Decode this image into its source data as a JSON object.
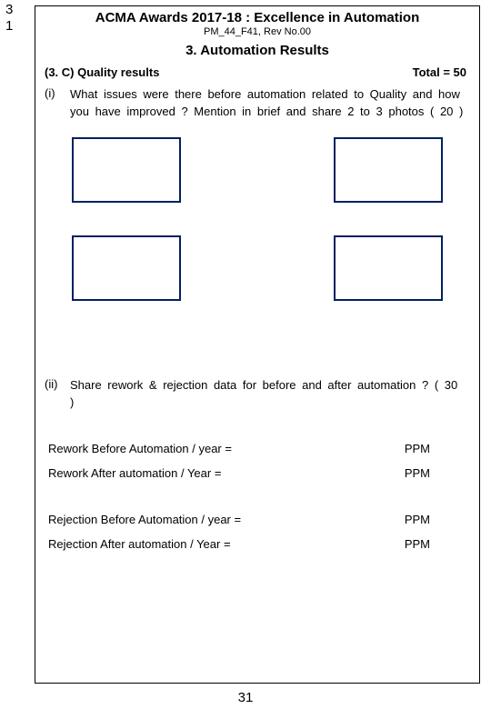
{
  "outer_number_top": "3",
  "outer_number_bottom": "1",
  "header": {
    "title": "ACMA Awards 2017-18 : Excellence in Automation",
    "subtitle": "PM_44_F41, Rev No.00"
  },
  "section_title": "3. Automation Results",
  "quality": {
    "left": "(3. C)   Quality   results",
    "right": "Total  = 50"
  },
  "q1": {
    "num": "(i)",
    "text": "What issues were there before automation related to Quality and how you have improved ? Mention in brief and share  2 to 3  photos   ( 20 )"
  },
  "q2": {
    "num": "(ii)",
    "text": "Share rework & rejection data for before and after automation  ? ( 30 )"
  },
  "rows": {
    "rework_before": {
      "label": "Rework Before  Automation / year  =",
      "unit": "PPM"
    },
    "rework_after": {
      "label": "Rework   After  automation / Year     =",
      "unit": "PPM"
    },
    "reject_before": {
      "label": "Rejection Before  Automation / year  =",
      "unit": "PPM"
    },
    "reject_after": {
      "label": "Rejection     After  automation / Year   =",
      "unit": "PPM"
    }
  },
  "page_number": "31",
  "colors": {
    "box_border": "#002060",
    "text": "#000000",
    "background": "#ffffff"
  }
}
